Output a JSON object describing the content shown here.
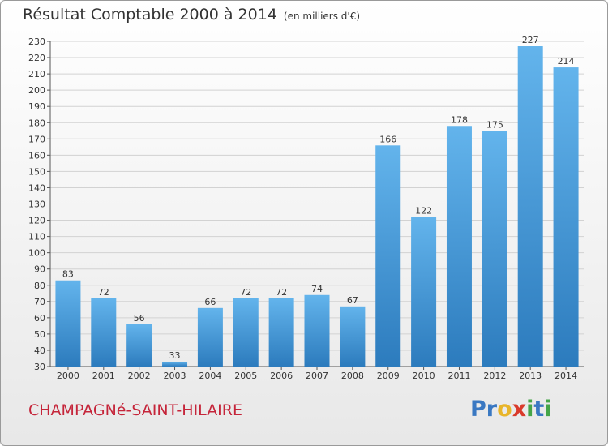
{
  "title": {
    "main": "Résultat Comptable 2000 à 2014",
    "unit": "(en milliers d'€)"
  },
  "commune": "CHAMPAGNé-SAINT-HILAIRE",
  "logo": {
    "letters": [
      {
        "ch": "P",
        "color": "#3a78c2"
      },
      {
        "ch": "r",
        "color": "#3a78c2"
      },
      {
        "ch": "o",
        "color": "#e8b52a"
      },
      {
        "ch": "x",
        "color": "#d93a2b"
      },
      {
        "ch": "i",
        "color": "#45a548"
      },
      {
        "ch": "t",
        "color": "#3a78c2"
      },
      {
        "ch": "i",
        "color": "#45a548"
      }
    ]
  },
  "colors": {
    "bar_top": "#63b4ec",
    "bar_bottom": "#2c7bbd",
    "gridline": "#d2d2d2",
    "text": "#333333",
    "commune": "#c5253a"
  },
  "chart_data": {
    "type": "bar",
    "categories": [
      "2000",
      "2001",
      "2002",
      "2003",
      "2004",
      "2005",
      "2006",
      "2007",
      "2008",
      "2009",
      "2010",
      "2011",
      "2012",
      "2013",
      "2014"
    ],
    "values": [
      83,
      72,
      56,
      33,
      66,
      72,
      72,
      74,
      67,
      166,
      122,
      178,
      175,
      227,
      214
    ],
    "ylim": [
      30,
      230
    ],
    "yticks": [
      30,
      40,
      50,
      60,
      70,
      80,
      90,
      100,
      110,
      120,
      130,
      140,
      150,
      160,
      170,
      180,
      190,
      200,
      210,
      220,
      230
    ],
    "grid": true,
    "data_labels": true
  }
}
